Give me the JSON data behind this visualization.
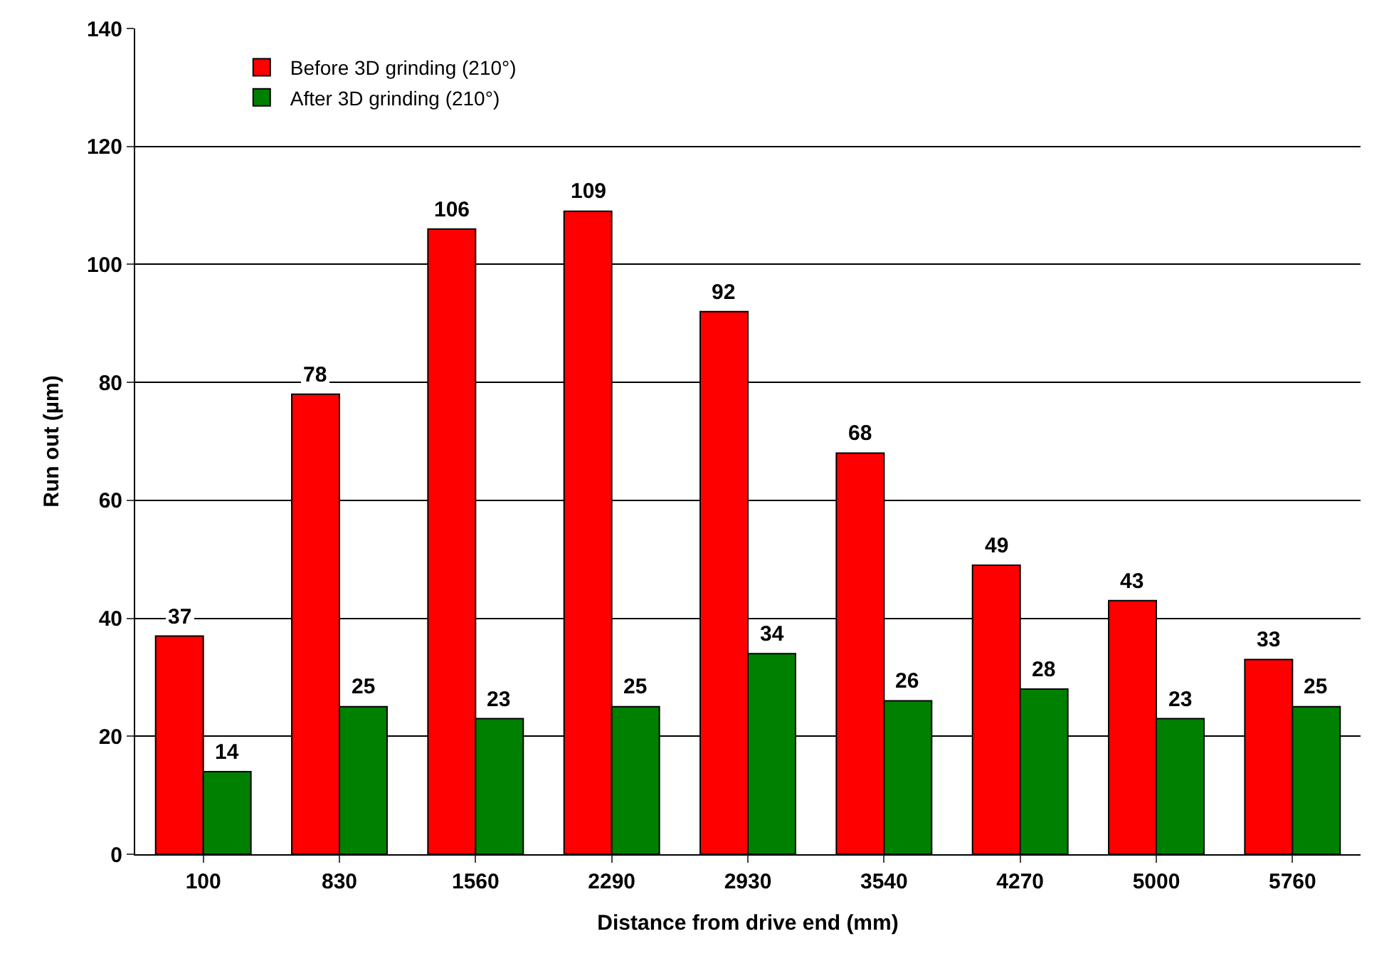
{
  "chart_data": {
    "type": "bar",
    "xlabel": "Distance from drive end (mm)",
    "ylabel": "Run out (µm)",
    "categories": [
      "100",
      "830",
      "1560",
      "2290",
      "2930",
      "3540",
      "4270",
      "5000",
      "5760"
    ],
    "series": [
      {
        "name": "Before 3D grinding (210°)",
        "color": "#ff0000",
        "values": [
          37,
          78,
          106,
          109,
          92,
          68,
          49,
          43,
          33
        ]
      },
      {
        "name": "After 3D grinding (210°)",
        "color": "#008000",
        "values": [
          14,
          25,
          23,
          25,
          34,
          26,
          28,
          23,
          25
        ]
      }
    ],
    "ylim": [
      0,
      140
    ],
    "yticks": [
      0,
      20,
      40,
      60,
      80,
      100,
      120,
      140
    ],
    "grid": "y",
    "legend": "top left",
    "data_labels": true
  }
}
